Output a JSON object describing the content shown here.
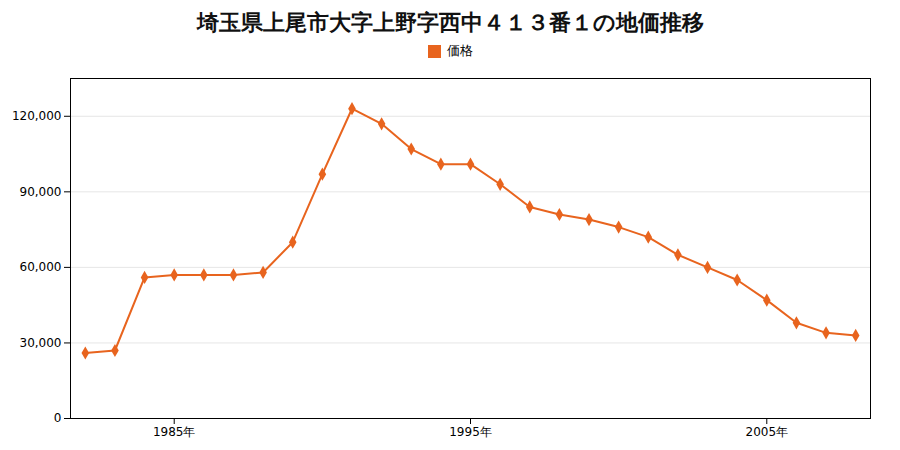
{
  "chart_data": {
    "type": "line",
    "title": "埼玉県上尾市大字上野字西中４１３番１の地価推移",
    "x": [
      1982,
      1983,
      1984,
      1985,
      1986,
      1987,
      1988,
      1989,
      1990,
      1991,
      1992,
      1993,
      1994,
      1995,
      1996,
      1997,
      1998,
      1999,
      2000,
      2001,
      2002,
      2003,
      2004,
      2005,
      2006,
      2007,
      2008
    ],
    "series": [
      {
        "name": "価格",
        "color": "#e8641e",
        "marker": "diamond",
        "values": [
          26000,
          27000,
          56000,
          57000,
          57000,
          57000,
          58000,
          70000,
          97000,
          123000,
          117000,
          107000,
          101000,
          101000,
          93000,
          84000,
          81000,
          79000,
          76000,
          72000,
          65000,
          60000,
          55000,
          47000,
          38000,
          34000,
          33000
        ]
      }
    ],
    "xlim": [
      1981.5,
      2008.5
    ],
    "xticks": [
      {
        "value": 1985,
        "label": "1985年"
      },
      {
        "value": 1995,
        "label": "1995年"
      },
      {
        "value": 2005,
        "label": "2005年"
      }
    ],
    "ylim": [
      0,
      135000
    ],
    "yticks": [
      0,
      {
        "value": 30000,
        "label": "30,000"
      },
      {
        "value": 60000,
        "label": "60,000"
      },
      {
        "value": 90000,
        "label": "90,000"
      },
      {
        "value": 120000,
        "label": "120,000"
      }
    ],
    "grid": true,
    "legend": "top"
  }
}
